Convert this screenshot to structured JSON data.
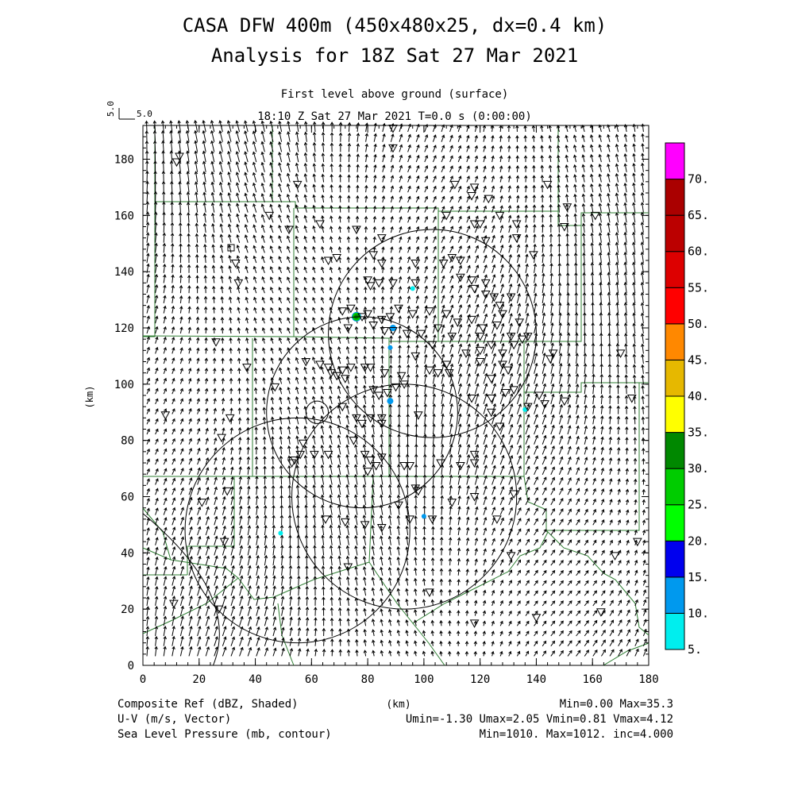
{
  "header": {
    "title_line1": "CASA DFW 400m (450x480x25, dx=0.4 km)",
    "title_line2": "Analysis for 18Z Sat 27 Mar 2021",
    "subtitle": "First level above ground (surface)",
    "time_line": "18:10 Z Sat 27 Mar 2021    T=0.0 s (0:00:00)",
    "ref_vector_rot": "5.0",
    "ref_vector_label": "5.0"
  },
  "footer": {
    "left_1": "Composite Ref (dBZ, Shaded)",
    "left_2": "U-V (m/s, Vector)",
    "left_3": "Sea Level Pressure (mb, contour)",
    "center": "(km)",
    "right_1": "Min=0.00 Max=35.3",
    "right_2": "Umin=-1.30 Umax=2.05 Vmin=0.81 Vmax=4.12",
    "right_3": "Min=1010. Max=1012. inc=4.000"
  },
  "chart_data": {
    "type": "heatmap",
    "xlabel": "",
    "ylabel": "(km)",
    "xlim": [
      0,
      180
    ],
    "ylim": [
      0,
      192
    ],
    "x_ticks": [
      0,
      20,
      40,
      60,
      80,
      100,
      120,
      140,
      160,
      180
    ],
    "y_ticks": [
      0,
      20,
      40,
      60,
      80,
      100,
      120,
      140,
      160,
      180
    ],
    "wind_vector": {
      "u_mean": 0.4,
      "v_mean": 2.5
    },
    "colorbar": {
      "labels": [
        "5.",
        "10.",
        "15.",
        "20.",
        "25.",
        "30.",
        "35.",
        "40.",
        "45.",
        "50.",
        "55.",
        "60.",
        "65.",
        "70."
      ],
      "colors": [
        "#00eeee",
        "#0099ee",
        "#0000ee",
        "#00ff00",
        "#00cc00",
        "#008800",
        "#ffff00",
        "#e6b800",
        "#ff8800",
        "#ff0000",
        "#dd0000",
        "#bb0000",
        "#aa0000",
        "#ff00ff"
      ]
    },
    "radar_rings": [
      {
        "x": 103,
        "y": 118,
        "r": 37
      },
      {
        "x": 78,
        "y": 90,
        "r": 34
      },
      {
        "x": 55,
        "y": 48,
        "r": 40
      },
      {
        "x": 93,
        "y": 60,
        "r": 40
      }
    ],
    "echoes": [
      {
        "x": 76,
        "y": 124,
        "dbz": 33
      },
      {
        "x": 89,
        "y": 120,
        "dbz": 14
      },
      {
        "x": 88,
        "y": 113,
        "dbz": 10
      },
      {
        "x": 88,
        "y": 94,
        "dbz": 13
      },
      {
        "x": 100,
        "y": 53,
        "dbz": 11
      },
      {
        "x": 49,
        "y": 47,
        "dbz": 7
      },
      {
        "x": 96,
        "y": 134,
        "dbz": 6
      },
      {
        "x": 136,
        "y": 91,
        "dbz": 6
      }
    ],
    "stations": [
      [
        12,
        179
      ],
      [
        13,
        181
      ],
      [
        55,
        171
      ],
      [
        89,
        191
      ],
      [
        89,
        184
      ],
      [
        111,
        171
      ],
      [
        117,
        167
      ],
      [
        118,
        170
      ],
      [
        123,
        166
      ],
      [
        144,
        171
      ],
      [
        45,
        160
      ],
      [
        52,
        155
      ],
      [
        63,
        157
      ],
      [
        76,
        155
      ],
      [
        85,
        152
      ],
      [
        108,
        160
      ],
      [
        118,
        157
      ],
      [
        120,
        157
      ],
      [
        127,
        160
      ],
      [
        133,
        157
      ],
      [
        151,
        163
      ],
      [
        161,
        160
      ],
      [
        150,
        156
      ],
      [
        33,
        143
      ],
      [
        34,
        136
      ],
      [
        66,
        144
      ],
      [
        69,
        145
      ],
      [
        82,
        146
      ],
      [
        85,
        143
      ],
      [
        97,
        143
      ],
      [
        107,
        143
      ],
      [
        110,
        145
      ],
      [
        113,
        144
      ],
      [
        122,
        151
      ],
      [
        133,
        152
      ],
      [
        139,
        146
      ],
      [
        80,
        137
      ],
      [
        81,
        135
      ],
      [
        84,
        136
      ],
      [
        89,
        136
      ],
      [
        97,
        136
      ],
      [
        113,
        138
      ],
      [
        117,
        137
      ],
      [
        118,
        134
      ],
      [
        122,
        136
      ],
      [
        122,
        132
      ],
      [
        125,
        131
      ],
      [
        127,
        128
      ],
      [
        131,
        131
      ],
      [
        128,
        125
      ],
      [
        71,
        126
      ],
      [
        74,
        127
      ],
      [
        78,
        124
      ],
      [
        80,
        125
      ],
      [
        85,
        123
      ],
      [
        88,
        124
      ],
      [
        91,
        127
      ],
      [
        96,
        125
      ],
      [
        102,
        126
      ],
      [
        108,
        125
      ],
      [
        112,
        122
      ],
      [
        117,
        123
      ],
      [
        121,
        120
      ],
      [
        120,
        117
      ],
      [
        126,
        121
      ],
      [
        131,
        117
      ],
      [
        134,
        122
      ],
      [
        135,
        116
      ],
      [
        137,
        117
      ],
      [
        73,
        120
      ],
      [
        82,
        121
      ],
      [
        86,
        119
      ],
      [
        89,
        119
      ],
      [
        94,
        118
      ],
      [
        99,
        118
      ],
      [
        105,
        120
      ],
      [
        110,
        117
      ],
      [
        115,
        111
      ],
      [
        120,
        112
      ],
      [
        124,
        114
      ],
      [
        128,
        111
      ],
      [
        132,
        114
      ],
      [
        103,
        114
      ],
      [
        26,
        115
      ],
      [
        37,
        106
      ],
      [
        58,
        108
      ],
      [
        63,
        107
      ],
      [
        66,
        106
      ],
      [
        67,
        104
      ],
      [
        69,
        103
      ],
      [
        71,
        105
      ],
      [
        72,
        102
      ],
      [
        74,
        106
      ],
      [
        79,
        106
      ],
      [
        81,
        106
      ],
      [
        86,
        104
      ],
      [
        92,
        103
      ],
      [
        93,
        100
      ],
      [
        97,
        110
      ],
      [
        108,
        107
      ],
      [
        102,
        105
      ],
      [
        109,
        104
      ],
      [
        120,
        108
      ],
      [
        124,
        102
      ],
      [
        128,
        107
      ],
      [
        130,
        105
      ],
      [
        145,
        109
      ],
      [
        146,
        111
      ],
      [
        129,
        97
      ],
      [
        132,
        98
      ],
      [
        141,
        96
      ],
      [
        150,
        94
      ],
      [
        170,
        111
      ],
      [
        174,
        95
      ],
      [
        47,
        99
      ],
      [
        82,
        98
      ],
      [
        84,
        96
      ],
      [
        87,
        97
      ],
      [
        90,
        99
      ],
      [
        105,
        104
      ],
      [
        117,
        95
      ],
      [
        124,
        95
      ],
      [
        124,
        90
      ],
      [
        127,
        85
      ],
      [
        137,
        92
      ],
      [
        143,
        93
      ],
      [
        8,
        89
      ],
      [
        31,
        88
      ],
      [
        71,
        92
      ],
      [
        76,
        88
      ],
      [
        78,
        86
      ],
      [
        85,
        86
      ],
      [
        81,
        88
      ],
      [
        85,
        88
      ],
      [
        98,
        89
      ],
      [
        28,
        81
      ],
      [
        57,
        79
      ],
      [
        75,
        80
      ],
      [
        56,
        75
      ],
      [
        61,
        75
      ],
      [
        66,
        75
      ],
      [
        79,
        75
      ],
      [
        85,
        74
      ],
      [
        53,
        72
      ],
      [
        54,
        73
      ],
      [
        81,
        73
      ],
      [
        83,
        71
      ],
      [
        93,
        71
      ],
      [
        95,
        71
      ],
      [
        106,
        72
      ],
      [
        113,
        71
      ],
      [
        118,
        75
      ],
      [
        118,
        72
      ],
      [
        80,
        69
      ],
      [
        30,
        62
      ],
      [
        21,
        58
      ],
      [
        91,
        57
      ],
      [
        97,
        63
      ],
      [
        98,
        62
      ],
      [
        110,
        58
      ],
      [
        118,
        60
      ],
      [
        132,
        61
      ],
      [
        65,
        52
      ],
      [
        72,
        51
      ],
      [
        79,
        50
      ],
      [
        85,
        49
      ],
      [
        95,
        52
      ],
      [
        103,
        52
      ],
      [
        126,
        52
      ],
      [
        29,
        44
      ],
      [
        131,
        39
      ],
      [
        168,
        39
      ],
      [
        176,
        44
      ],
      [
        73,
        35
      ],
      [
        102,
        26
      ],
      [
        118,
        15
      ],
      [
        140,
        17
      ],
      [
        163,
        19
      ],
      [
        11,
        22
      ],
      [
        27,
        20
      ]
    ]
  }
}
